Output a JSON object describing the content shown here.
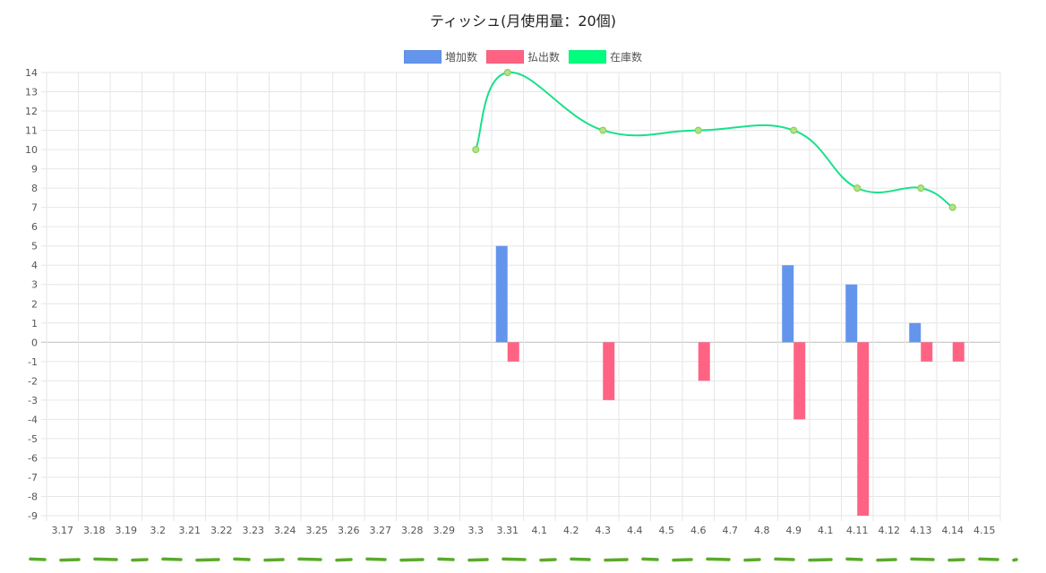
{
  "chart_data": {
    "type": "bar",
    "title": "ティッシュ(月使用量：20個)",
    "categories": [
      "3.17",
      "3.18",
      "3.19",
      "3.2",
      "3.21",
      "3.22",
      "3.23",
      "3.24",
      "3.25",
      "3.26",
      "3.27",
      "3.28",
      "3.29",
      "3.3",
      "3.31",
      "4.1",
      "4.2",
      "4.3",
      "4.4",
      "4.5",
      "4.6",
      "4.7",
      "4.8",
      "4.9",
      "4.1",
      "4.11",
      "4.12",
      "4.13",
      "4.14",
      "4.15"
    ],
    "ylim": [
      -9,
      14
    ],
    "yticks": [
      14,
      13,
      12,
      11,
      10,
      9,
      8,
      7,
      6,
      5,
      4,
      3,
      2,
      1,
      0,
      -1,
      -2,
      -3,
      -4,
      -5,
      -6,
      -7,
      -8,
      -9
    ],
    "grid": true,
    "legend_position": "top",
    "series": [
      {
        "name": "増加数",
        "type": "bar",
        "color": "#6495ED",
        "values": [
          null,
          null,
          null,
          null,
          null,
          null,
          null,
          null,
          null,
          null,
          null,
          null,
          null,
          null,
          5,
          null,
          null,
          null,
          null,
          null,
          null,
          null,
          null,
          4,
          null,
          3,
          null,
          1,
          null,
          null
        ]
      },
      {
        "name": "払出数",
        "type": "bar",
        "color": "#FF6384",
        "values": [
          null,
          null,
          null,
          null,
          null,
          null,
          null,
          null,
          null,
          null,
          null,
          null,
          null,
          null,
          -1,
          null,
          null,
          -3,
          null,
          null,
          -2,
          null,
          null,
          -4,
          null,
          -9,
          null,
          -1,
          -1,
          null
        ]
      },
      {
        "name": "在庫数",
        "type": "line",
        "color": "#00FF7F",
        "values": [
          null,
          null,
          null,
          null,
          null,
          null,
          null,
          null,
          null,
          null,
          null,
          null,
          null,
          10,
          14,
          null,
          null,
          11,
          null,
          null,
          11,
          null,
          null,
          11,
          null,
          8,
          null,
          8,
          7,
          null
        ]
      }
    ]
  },
  "decor": {
    "bottom_dash_color": "#5aaa2a"
  }
}
